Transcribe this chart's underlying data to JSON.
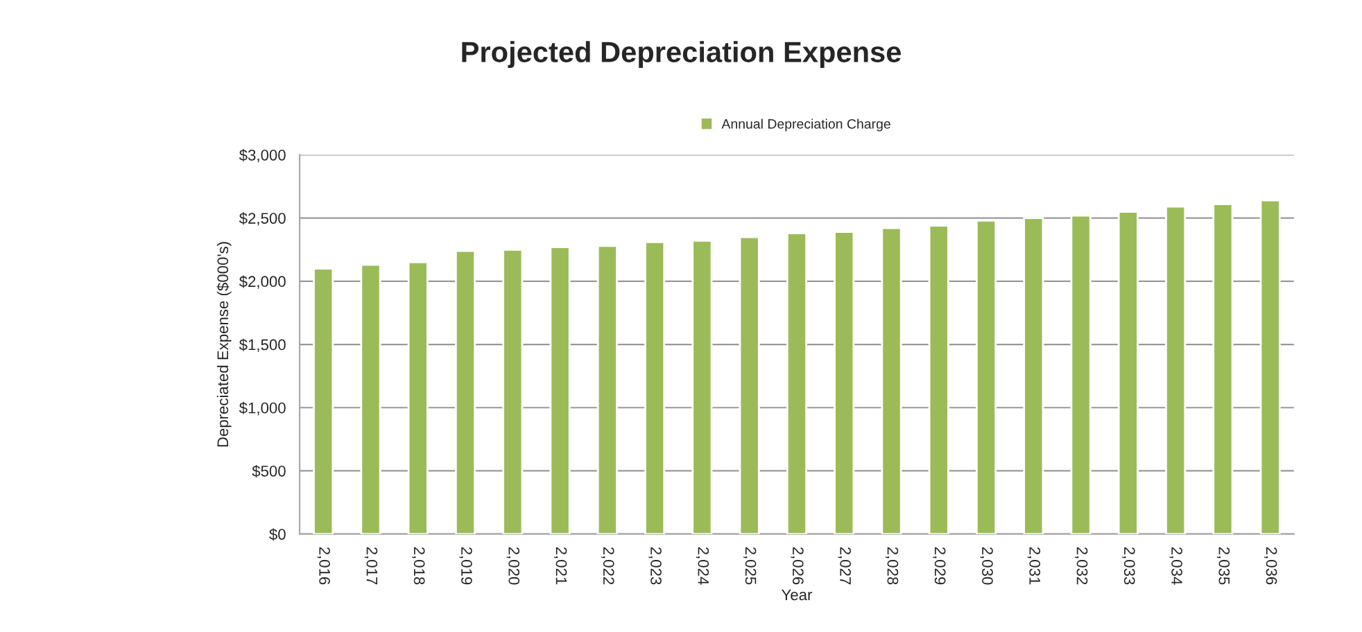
{
  "chart_data": {
    "type": "bar",
    "title": "Projected Depreciation Expense",
    "xlabel": "Year",
    "ylabel": "Depreciated Expense ($000's)",
    "categories": [
      "2,016",
      "2,017",
      "2,018",
      "2,019",
      "2,020",
      "2,021",
      "2,022",
      "2,023",
      "2,024",
      "2,025",
      "2,026",
      "2,027",
      "2,028",
      "2,029",
      "2,030",
      "2,031",
      "2,032",
      "2,033",
      "2,034",
      "2,035",
      "2,036"
    ],
    "series": [
      {
        "name": "Annual Depreciation Charge",
        "color": "#9bbb59",
        "values": [
          2100,
          2130,
          2150,
          2240,
          2250,
          2270,
          2280,
          2310,
          2320,
          2350,
          2380,
          2390,
          2420,
          2440,
          2480,
          2500,
          2520,
          2550,
          2590,
          2610,
          2640
        ]
      }
    ],
    "ylim": [
      0,
      3000
    ],
    "yticks": [
      {
        "value": 0,
        "label": "$0"
      },
      {
        "value": 500,
        "label": "$500"
      },
      {
        "value": 1000,
        "label": "$1,000"
      },
      {
        "value": 1500,
        "label": "$1,500"
      },
      {
        "value": 2000,
        "label": "$2,000"
      },
      {
        "value": 2500,
        "label": "$2,500"
      },
      {
        "value": 3000,
        "label": "$3,000"
      }
    ],
    "grid": "y",
    "legend": "top"
  }
}
